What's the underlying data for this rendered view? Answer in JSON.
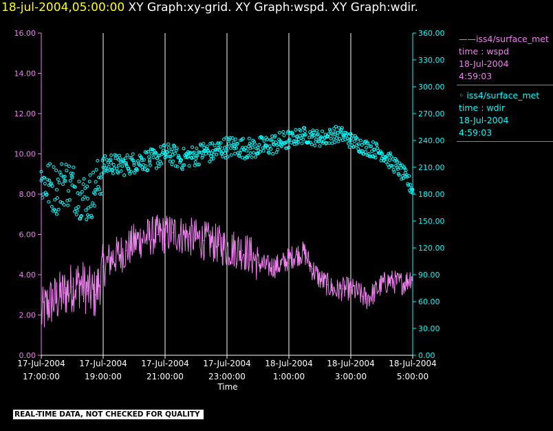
{
  "header": {
    "timestamp": "18-jul-2004,05:00:00",
    "graphs": "XY Graph:xy-grid.  XY Graph:wspd.  XY Graph:wdir."
  },
  "legend": {
    "wspd": {
      "line1": "——iss4/surface_met",
      "line2": "time : wspd",
      "line3": "18-Jul-2004",
      "line4": "4:59:03"
    },
    "wdir": {
      "line1": "◦  iss4/surface_met",
      "line2": "time : wdir",
      "line3": "18-Jul-2004",
      "line4": "4:59:03"
    }
  },
  "footer": {
    "warning": "REAL-TIME DATA, NOT CHECKED FOR QUALITY"
  },
  "colors": {
    "wspd": "#ee82ee",
    "wdir": "#00ffff",
    "grid": "#ffffff",
    "axis_text": "#ffffff",
    "header_time": "#ffff00"
  },
  "chart_data": {
    "type": "line",
    "xlabel": "Time",
    "x_ticks": [
      {
        "date": "17-Jul-2004",
        "time": "17:00:00"
      },
      {
        "date": "17-Jul-2004",
        "time": "19:00:00"
      },
      {
        "date": "17-Jul-2004",
        "time": "21:00:00"
      },
      {
        "date": "17-Jul-2004",
        "time": "23:00:00"
      },
      {
        "date": "18-Jul-2004",
        "time": "1:00:00"
      },
      {
        "date": "18-Jul-2004",
        "time": "3:00:00"
      },
      {
        "date": "18-Jul-2004",
        "time": "5:00:00"
      }
    ],
    "x_range": [
      "17-Jul-2004 17:00:00",
      "18-Jul-2004 05:00:00"
    ],
    "y_left": {
      "range": [
        0,
        16
      ],
      "ticks": [
        "0.00",
        "2.00",
        "4.00",
        "6.00",
        "8.00",
        "10.00",
        "12.00",
        "14.00",
        "16.00"
      ]
    },
    "y_right": {
      "range": [
        0,
        360
      ],
      "ticks": [
        "0.00",
        "30.00",
        "60.00",
        "90.00",
        "120.00",
        "150.00",
        "180.00",
        "210.00",
        "240.00",
        "270.00",
        "300.00",
        "330.00",
        "360.00"
      ]
    },
    "grid": "vertical lines at each x tick",
    "series": [
      {
        "name": "iss4/surface_met time : wspd",
        "style": "line",
        "axis": "left",
        "x_hours": [
          0,
          0.25,
          0.5,
          0.75,
          1,
          1.25,
          1.5,
          1.75,
          2,
          2.25,
          2.5,
          2.75,
          3,
          3.25,
          3.5,
          3.75,
          4,
          4.25,
          4.5,
          4.75,
          5,
          5.25,
          5.5,
          5.75,
          6,
          6.25,
          6.5,
          6.75,
          7,
          7.25,
          7.5,
          7.75,
          8,
          8.25,
          8.5,
          8.75,
          9,
          9.25,
          9.5,
          9.75,
          10,
          10.25,
          10.5,
          10.75,
          11,
          11.25,
          11.5,
          11.75,
          12
        ],
        "values": [
          2.0,
          2.6,
          2.8,
          3.1,
          3.4,
          3.6,
          3.2,
          3.0,
          4.3,
          4.8,
          5.0,
          5.2,
          5.6,
          5.8,
          5.9,
          6.0,
          6.0,
          6.1,
          6.0,
          5.9,
          5.8,
          5.7,
          5.6,
          5.5,
          5.3,
          5.3,
          5.2,
          5.0,
          4.6,
          4.4,
          4.4,
          4.5,
          4.8,
          5.0,
          5.1,
          4.3,
          3.8,
          3.5,
          3.2,
          3.3,
          3.3,
          3.1,
          2.8,
          3.1,
          3.5,
          3.7,
          3.6,
          3.6,
          4.0
        ]
      },
      {
        "name": "iss4/surface_met time : wdir",
        "style": "scatter",
        "axis": "right",
        "x_hours": [
          0,
          0.25,
          0.5,
          0.75,
          1,
          1.25,
          1.5,
          1.75,
          2,
          2.25,
          2.5,
          2.75,
          3,
          3.25,
          3.5,
          3.75,
          4,
          4.25,
          4.5,
          4.75,
          5,
          5.25,
          5.5,
          5.75,
          6,
          6.25,
          6.5,
          6.75,
          7,
          7.25,
          7.5,
          7.75,
          8,
          8.25,
          8.5,
          8.75,
          9,
          9.25,
          9.5,
          9.75,
          10,
          10.25,
          10.5,
          10.75,
          11,
          11.25,
          11.5,
          11.75,
          12
        ],
        "values": [
          195,
          190,
          185,
          195,
          190,
          180,
          175,
          185,
          210,
          215,
          212,
          213,
          215,
          218,
          218,
          220,
          225,
          224,
          218,
          222,
          223,
          228,
          226,
          230,
          233,
          233,
          232,
          231,
          232,
          234,
          236,
          238,
          240,
          244,
          246,
          244,
          242,
          244,
          247,
          246,
          240,
          236,
          232,
          230,
          226,
          218,
          210,
          200,
          185
        ]
      }
    ]
  }
}
